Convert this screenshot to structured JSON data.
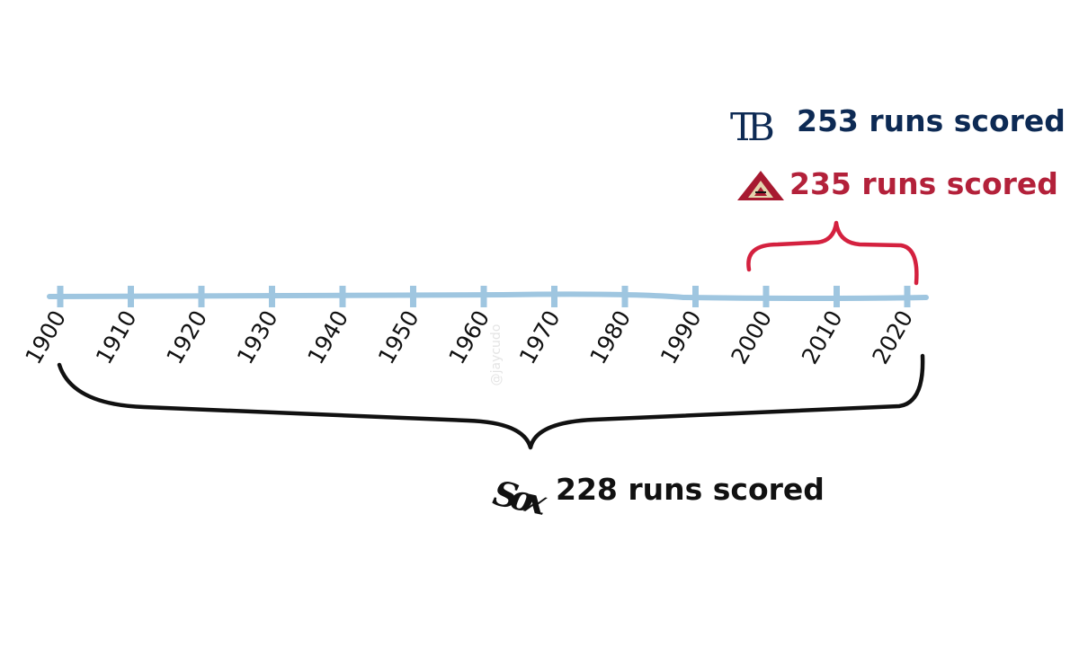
{
  "timeline": {
    "years": [
      "1900",
      "1910",
      "1920",
      "1930",
      "1940",
      "1950",
      "1960",
      "1970",
      "1980",
      "1990",
      "2000",
      "2010",
      "2020"
    ],
    "line_color": "#9fc6e0"
  },
  "teams": {
    "rays": {
      "logo_icon": "rays-tb-logo-icon",
      "logo_text": "TB",
      "label": "253 runs scored",
      "color": "#0d2a54"
    },
    "diamondbacks": {
      "logo_icon": "diamondbacks-a-logo-icon",
      "label": "235 runs scored",
      "color": "#b3213a",
      "span": [
        "2000",
        "2020"
      ]
    },
    "white_sox": {
      "logo_icon": "white-sox-logo-icon",
      "logo_text": "Sox",
      "label": "228 runs scored",
      "color": "#111111",
      "span": [
        "1900",
        "2020"
      ]
    }
  },
  "watermark": "@jaycudo"
}
